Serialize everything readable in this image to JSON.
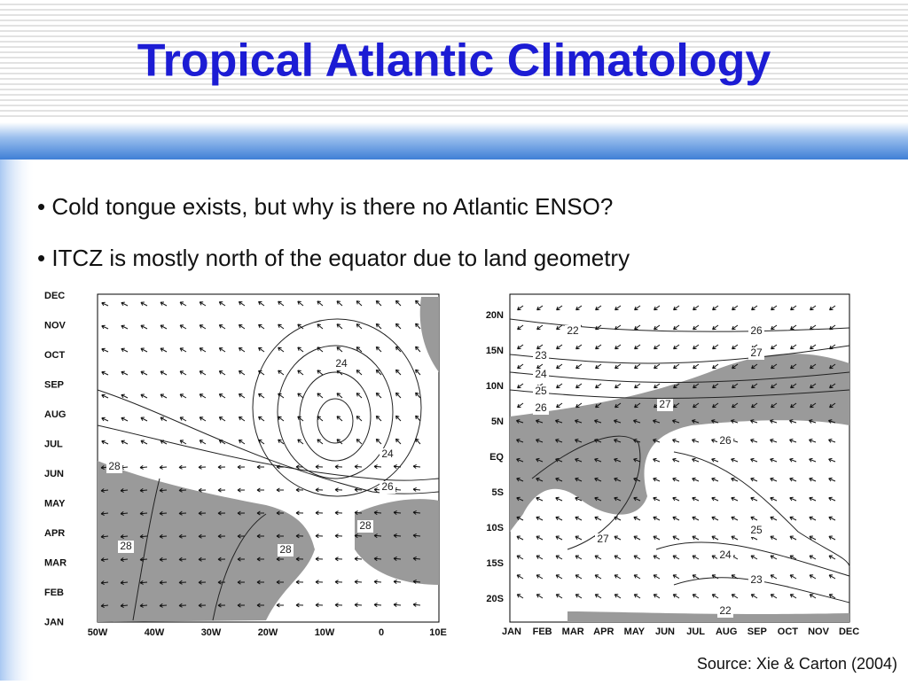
{
  "title": "Tropical Atlantic Climatology",
  "bullets": [
    "• Cold tongue exists, but why is there no Atlantic ENSO?",
    "• ITCZ is mostly north of the equator due to land geometry"
  ],
  "figures": [
    {
      "y_labels": [
        "DEC",
        "NOV",
        "OCT",
        "SEP",
        "AUG",
        "JUL",
        "JUN",
        "MAY",
        "APR",
        "MAR",
        "FEB",
        "JAN"
      ],
      "x_labels": [
        "50W",
        "40W",
        "30W",
        "20W",
        "10W",
        "0",
        "10E"
      ],
      "contour_labels": [
        "24",
        "24",
        "26",
        "28",
        "28",
        "28",
        "28"
      ]
    },
    {
      "y_labels": [
        "20N",
        "15N",
        "10N",
        "5N",
        "EQ",
        "5S",
        "10S",
        "15S",
        "20S"
      ],
      "x_labels": [
        "JAN",
        "FEB",
        "MAR",
        "APR",
        "MAY",
        "JUN",
        "JUL",
        "AUG",
        "SEP",
        "OCT",
        "NOV",
        "DEC"
      ],
      "contour_labels": [
        "22",
        "23",
        "24",
        "25",
        "26",
        "26",
        "27",
        "27",
        "26",
        "27",
        "25",
        "24",
        "23",
        "22"
      ]
    }
  ],
  "source": "Source: Xie & Carton (2004)"
}
